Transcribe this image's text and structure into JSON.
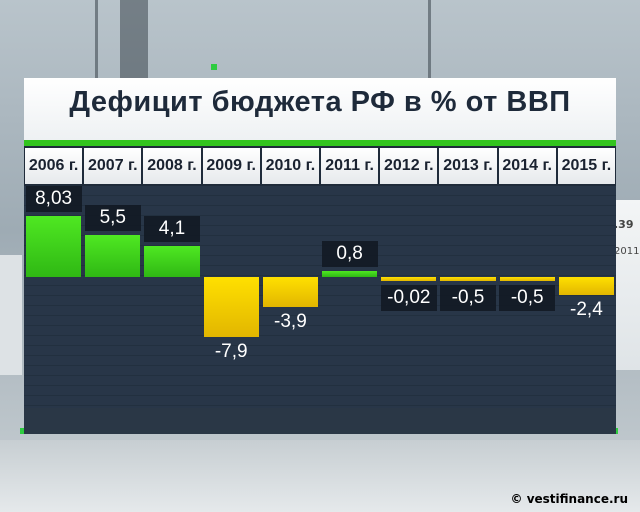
{
  "title": "Дефицит бюджета РФ в % от ВВП",
  "credit": "© vestifinance.ru",
  "background_panel": {
    "value": ".39",
    "year": "2011"
  },
  "colors": {
    "positive": "#3fdc1e",
    "negative": "#f2cc00",
    "panel": "#1f2b3a",
    "accent": "#33c41e"
  },
  "chart_data": {
    "type": "bar",
    "title": "Дефицит бюджета РФ в % от ВВП",
    "categories": [
      "2006 г.",
      "2007 г.",
      "2008 г.",
      "2009 г.",
      "2010 г.",
      "2011 г.",
      "2012 г.",
      "2013 г.",
      "2014 г.",
      "2015 г."
    ],
    "values": [
      8.03,
      5.5,
      4.1,
      -7.9,
      -3.9,
      0.8,
      -0.02,
      -0.5,
      -0.5,
      -2.4
    ],
    "labels": [
      "8,03",
      "5,5",
      "4,1",
      "-7,9",
      "-3,9",
      "0,8",
      "-0,02",
      "-0,5",
      "-0,5",
      "-2,4"
    ],
    "xlabel": "",
    "ylabel": "",
    "ylim": [
      -10.5,
      14.5
    ],
    "grid": true,
    "legend": "none"
  }
}
